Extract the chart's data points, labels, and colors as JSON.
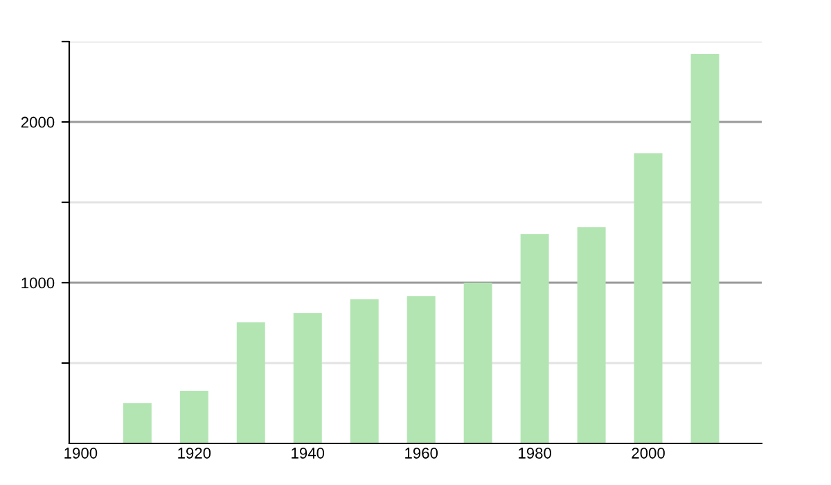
{
  "chart_data": {
    "type": "bar",
    "x": [
      1910,
      1920,
      1930,
      1940,
      1950,
      1960,
      1970,
      1980,
      1990,
      2000,
      2010
    ],
    "values": [
      250,
      328,
      753,
      810,
      897,
      917,
      1000,
      1302,
      1345,
      1805,
      2422
    ],
    "color": "#b3e5b3",
    "xlim": [
      1898,
      2020
    ],
    "xticks": [
      1900,
      1920,
      1940,
      1960,
      1980,
      2000
    ],
    "ylim": [
      0,
      2500
    ],
    "yticks": [
      {
        "value": 500,
        "label": null
      },
      1000,
      {
        "value": 1500,
        "label": null
      },
      2000,
      {
        "value": 2500,
        "label": null
      }
    ],
    "grid": "y"
  }
}
